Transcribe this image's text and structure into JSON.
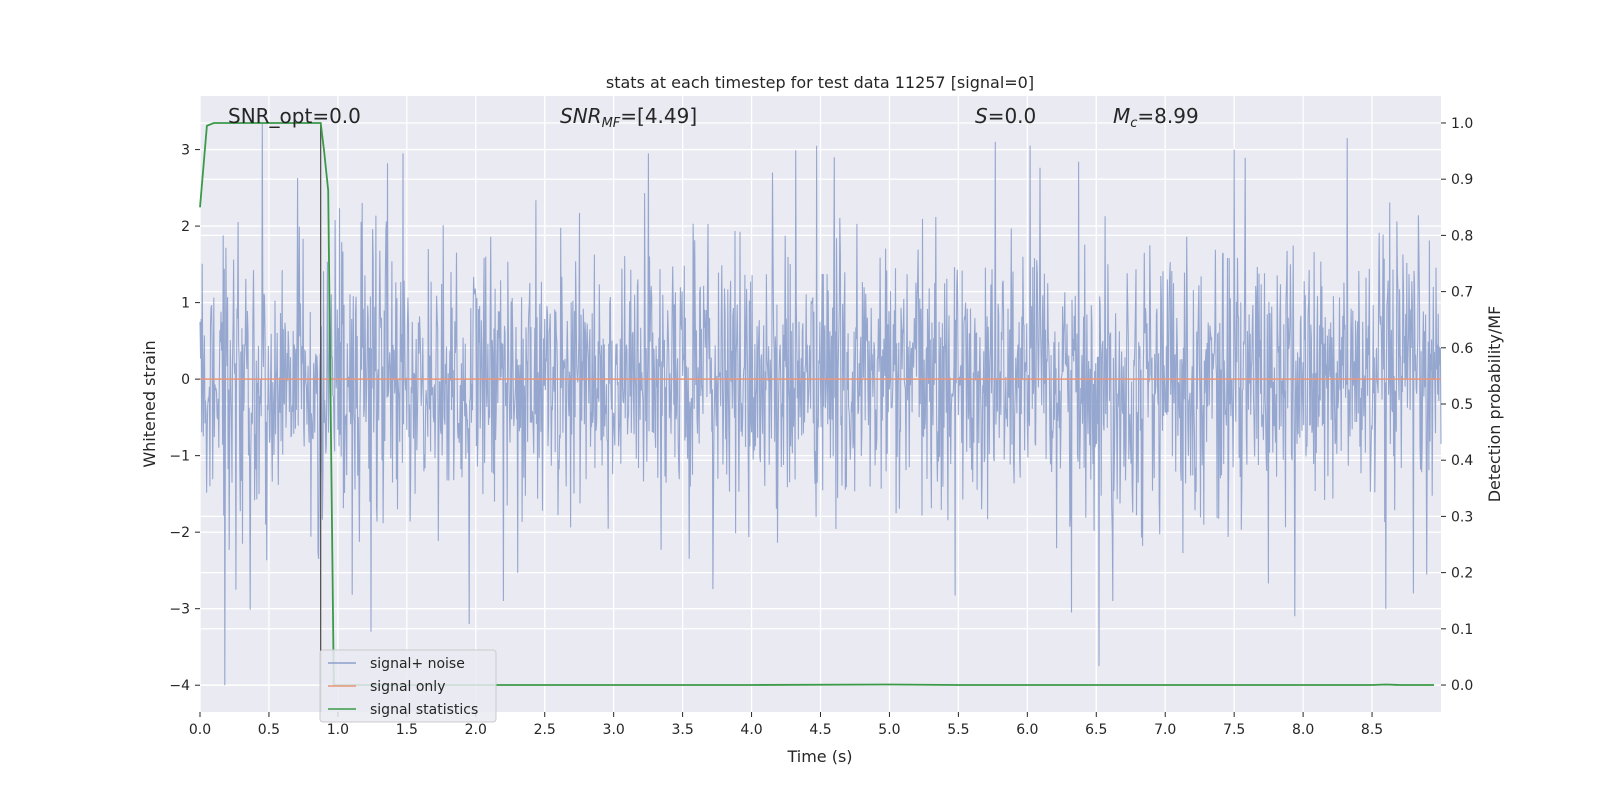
{
  "chart_data": {
    "type": "line",
    "title": "stats at each timestep for test data 11257 [signal=0]",
    "xlabel": "Time (s)",
    "ylabel": "Whitened strain",
    "y2label": "Detection probability/MF",
    "xlim": [
      0.0,
      9.0
    ],
    "ylim": [
      -4.35,
      3.7
    ],
    "y2lim": [
      -0.048,
      1.048
    ],
    "x_ticks": [
      0.0,
      0.5,
      1.0,
      1.5,
      2.0,
      2.5,
      3.0,
      3.5,
      4.0,
      4.5,
      5.0,
      5.5,
      6.0,
      6.5,
      7.0,
      7.5,
      8.0,
      8.5
    ],
    "x_tick_labels": [
      "0.0",
      "0.5",
      "1.0",
      "1.5",
      "2.0",
      "2.5",
      "3.0",
      "3.5",
      "4.0",
      "4.5",
      "5.0",
      "5.5",
      "6.0",
      "6.5",
      "7.0",
      "7.5",
      "8.0",
      "8.5"
    ],
    "y_ticks": [
      3,
      2,
      1,
      0,
      -1,
      -2,
      -3,
      -4
    ],
    "y_tick_labels": [
      "3",
      "2",
      "1",
      "0",
      "−1",
      "−2",
      "−3",
      "−4"
    ],
    "y2_ticks": [
      1.0,
      0.9,
      0.8,
      0.7,
      0.6,
      0.5,
      0.4,
      0.3,
      0.2,
      0.1,
      0.0
    ],
    "y2_tick_labels": [
      "1.0",
      "0.9",
      "0.8",
      "0.7",
      "0.6",
      "0.5",
      "0.4",
      "0.3",
      "0.2",
      "0.1",
      "0.0"
    ],
    "grid": true,
    "legend_position": "lower-left",
    "annotations": {
      "snr_opt": "SNR_opt=0.0",
      "snr_mf_main": "SNR",
      "snr_mf_sub": "MF",
      "snr_mf_value": "=[4.49]",
      "s_main": "S",
      "s_value": "=0.0",
      "mc_main": "M",
      "mc_sub": "c",
      "mc_value": "=8.99"
    },
    "vline_x": 0.875,
    "series": [
      {
        "name": "signal+ noise",
        "color": "#8da0cb",
        "kind": "noise",
        "std": 0.85,
        "seed": 11257,
        "sample_step": 0.004,
        "spikes": [
          {
            "x": 0.18,
            "y": -4.0
          },
          {
            "x": 0.45,
            "y": 3.35
          },
          {
            "x": 0.26,
            "y": -2.75
          },
          {
            "x": 0.86,
            "y": -2.35
          },
          {
            "x": 1.24,
            "y": -3.3
          },
          {
            "x": 1.47,
            "y": 2.95
          },
          {
            "x": 1.95,
            "y": -3.2
          },
          {
            "x": 2.2,
            "y": -2.9
          },
          {
            "x": 3.25,
            "y": 2.95
          },
          {
            "x": 4.15,
            "y": 2.7
          },
          {
            "x": 4.47,
            "y": 3.05
          },
          {
            "x": 4.6,
            "y": 2.9
          },
          {
            "x": 5.77,
            "y": 3.1
          },
          {
            "x": 6.02,
            "y": 3.05
          },
          {
            "x": 6.32,
            "y": -3.05
          },
          {
            "x": 6.52,
            "y": -3.75
          },
          {
            "x": 6.62,
            "y": -2.9
          },
          {
            "x": 7.5,
            "y": 3.0
          },
          {
            "x": 7.94,
            "y": -3.1
          },
          {
            "x": 8.32,
            "y": 3.15
          },
          {
            "x": 8.6,
            "y": -3.0
          },
          {
            "x": 8.8,
            "y": -2.8
          }
        ]
      },
      {
        "name": "signal only",
        "color": "#e8967a",
        "kind": "line",
        "x": [
          0.0,
          9.0
        ],
        "y": [
          0.0,
          0.0
        ]
      },
      {
        "name": "signal statistics",
        "color": "#3a9a48",
        "kind": "stat",
        "axis": "right",
        "x": [
          0.0,
          0.05,
          0.1,
          0.2,
          0.3,
          0.4,
          0.5,
          0.6,
          0.7,
          0.8,
          0.875,
          0.9,
          0.93,
          0.97,
          1.02,
          1.1,
          1.5,
          2.0,
          3.0,
          4.0,
          5.0,
          5.5,
          6.0,
          7.0,
          8.0,
          8.5,
          8.6,
          8.7,
          8.95
        ],
        "y": [
          0.85,
          0.995,
          1.0,
          1.0,
          1.0,
          1.0,
          1.0,
          1.0,
          1.0,
          1.0,
          1.0,
          0.95,
          0.88,
          0.0,
          0.0,
          0.0,
          0.0,
          0.0,
          0.0,
          0.0,
          0.001,
          0.0,
          0.0,
          0.0,
          0.0,
          0.0,
          0.001,
          0.0,
          0.0
        ]
      }
    ]
  }
}
